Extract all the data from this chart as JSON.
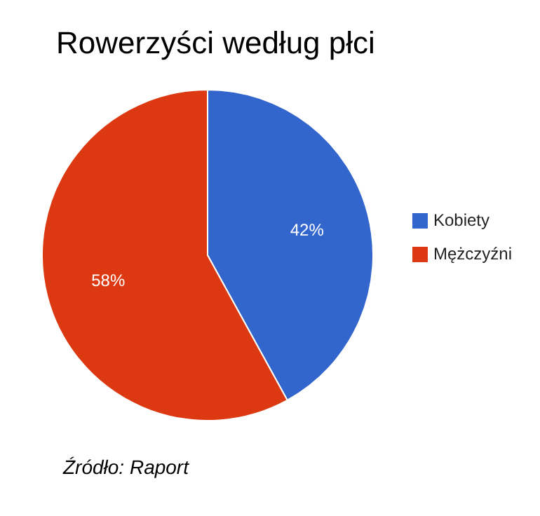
{
  "chart_data": {
    "type": "pie",
    "title": "Rowerzyści według płci",
    "categories": [
      "Kobiety",
      "Mężczyźni"
    ],
    "values": [
      42,
      58
    ],
    "colors": [
      "#3366cc",
      "#dc3912"
    ],
    "value_labels": [
      "42%",
      "58%"
    ],
    "legend": "right",
    "annotations": [
      "Źródło: Raport"
    ]
  }
}
